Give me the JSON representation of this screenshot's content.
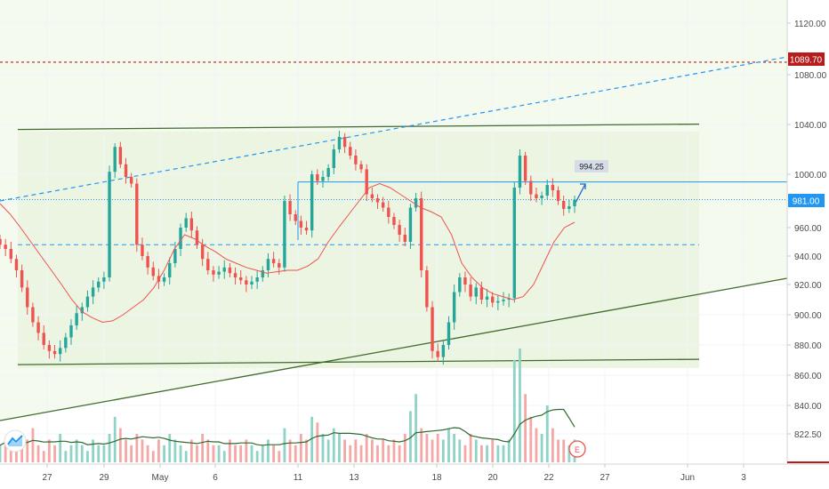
{
  "chart_data": {
    "type": "candlestick",
    "title": "",
    "y_axis": {
      "side": "right",
      "ticks": [
        "1120.00",
        "1080.00",
        "1040.00",
        "1000.00",
        "960.00",
        "940.00",
        "920.00",
        "900.00",
        "880.00",
        "860.00",
        "840.00",
        "822.50"
      ],
      "ylim": [
        815,
        1130
      ]
    },
    "x_axis": {
      "ticks": [
        "27",
        "29",
        "May",
        "6",
        "11",
        "13",
        "18",
        "20",
        "22",
        "27",
        "Jun",
        "3"
      ]
    },
    "price_labels": {
      "alert": "1089.70",
      "current": "981.00",
      "target": "994.25"
    },
    "levels": {
      "alert": 1089.7,
      "current": 981,
      "target": 994.25,
      "mid": 948,
      "channel_top": 1036,
      "channel_bottom": 867
    },
    "earnings_marker": "E",
    "colors": {
      "up": "#26a69a",
      "down": "#ef5350",
      "ma": "#ef5350",
      "volume_ma": "#2e6b2e",
      "channel_line": "#3f6b2c",
      "zone_fill": "#eef7e6",
      "dashed_trend": "#2196f3",
      "alert_line": "#b71c1c",
      "current_label": "#2196f3"
    },
    "series": [
      {
        "name": "price",
        "closes": [
          948,
          945,
          938,
          930,
          918,
          905,
          895,
          888,
          880,
          876,
          874,
          878,
          885,
          893,
          901,
          905,
          912,
          918,
          922,
          925,
          1002,
          1022,
          1008,
          998,
          993,
          948,
          940,
          932,
          926,
          922,
          925,
          935,
          945,
          960,
          967,
          958,
          948,
          938,
          930,
          927,
          929,
          932,
          928,
          925,
          923,
          920,
          922,
          925,
          930,
          938,
          935,
          932,
          980,
          970,
          965,
          960,
          958,
          1000,
          995,
          998,
          1005,
          1020,
          1030,
          1022,
          1015,
          1008,
          1004,
          985,
          982,
          979,
          975,
          968,
          962,
          955,
          950,
          975,
          982,
          930,
          905,
          876,
          872,
          880,
          895,
          915,
          925,
          920,
          912,
          918,
          910,
          912,
          908,
          909,
          910,
          911,
          990,
          1015,
          995,
          985,
          982,
          984,
          992,
          988,
          980,
          974,
          976,
          981
        ]
      },
      {
        "name": "moving_average",
        "values": [
          978,
          970,
          960,
          950,
          940,
          930,
          920,
          910,
          902,
          898,
          895,
          896,
          900,
          905,
          910,
          918,
          930,
          945,
          955,
          952,
          947,
          943,
          938,
          935,
          932,
          930,
          928,
          929,
          930,
          930,
          933,
          938,
          950,
          960,
          970,
          980,
          990,
          993,
          990,
          985,
          980,
          975,
          972,
          968,
          955,
          935,
          925,
          918,
          914,
          912,
          910,
          912,
          920,
          935,
          950,
          960,
          964
        ]
      }
    ],
    "volume": [
      3,
      4,
      2,
      5,
      3,
      4,
      6,
      3,
      2,
      4,
      3,
      5,
      2,
      3,
      4,
      3,
      2,
      4,
      3,
      3,
      5,
      8,
      6,
      4,
      3,
      5,
      4,
      3,
      2,
      4,
      3,
      5,
      4,
      3,
      2,
      4,
      3,
      5,
      4,
      3,
      3,
      2,
      4,
      3,
      3,
      4,
      3,
      2,
      3,
      4,
      3,
      2,
      6,
      4,
      3,
      5,
      4,
      8,
      7,
      5,
      4,
      6,
      5,
      4,
      3,
      4,
      3,
      5,
      4,
      3,
      4,
      3,
      4,
      3,
      5,
      9,
      12,
      6,
      5,
      4,
      5,
      4,
      6,
      5,
      4,
      3,
      5,
      4,
      3,
      3,
      4,
      3,
      3,
      4,
      18,
      20,
      12,
      8,
      6,
      5,
      10,
      6,
      4,
      4,
      3,
      4
    ]
  }
}
